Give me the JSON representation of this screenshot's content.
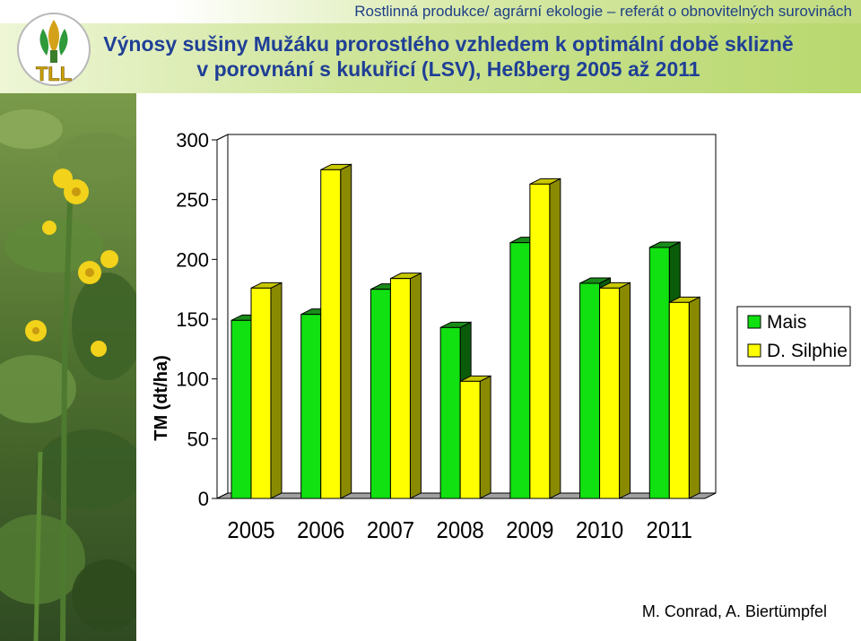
{
  "header": {
    "text": "Rostlinná produkce/ agrární ekologie – referát o obnovitelných  surovinách"
  },
  "title": {
    "line1": "Výnosy sušiny Mužáku prorostlého vzhledem k optimální době sklizně",
    "line2": "v porovnání s kukuřicí (LSV), Heßberg 2005 až 2011"
  },
  "logo": {
    "text": "TLL"
  },
  "author": "M. Conrad, A. Biertümpfel",
  "colors": {
    "mais": "#11e011",
    "silphie": "#ffff00"
  },
  "chart_data": {
    "type": "bar",
    "categories": [
      "2005",
      "2006",
      "2007",
      "2008",
      "2009",
      "2010",
      "2011"
    ],
    "series": [
      {
        "name": "Mais",
        "values": [
          149,
          154,
          175,
          143,
          214,
          180,
          210
        ]
      },
      {
        "name": "D. Silphie",
        "values": [
          176,
          275,
          184,
          98,
          263,
          176,
          164
        ]
      }
    ],
    "ylabel": "TM (dt/ha)",
    "ylim": [
      0,
      300
    ],
    "yticks": [
      "0",
      "50",
      "100",
      "150",
      "200",
      "250",
      "300"
    ],
    "legend": "right",
    "grid": false
  }
}
